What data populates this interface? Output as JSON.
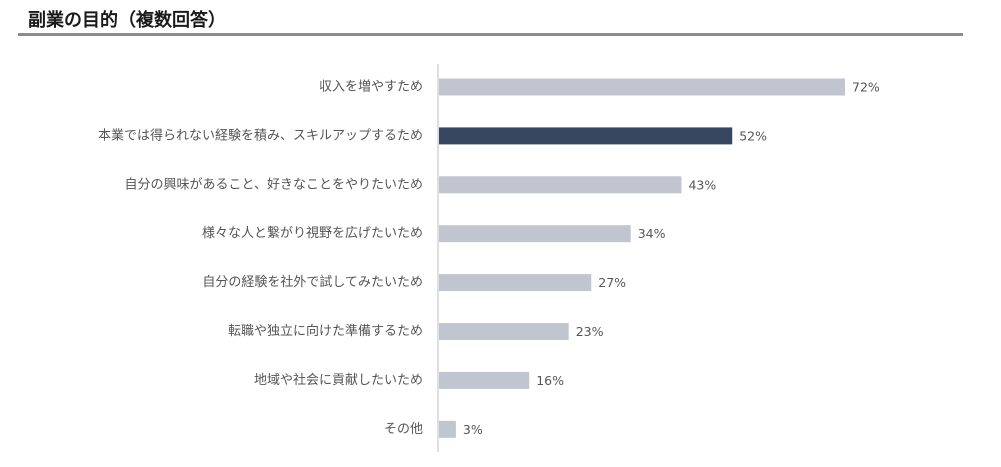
{
  "page": {
    "title": "副業の目的（複数回答）"
  },
  "colors": {
    "bar_default": "#c0c5d0",
    "bar_highlight": "#374761",
    "axis": "#bfbfbf",
    "title_rule": "#8c8c8c"
  },
  "chart_data": {
    "type": "bar",
    "orientation": "horizontal",
    "categories": [
      "収入を増やすため",
      "本業では得られない経験を積み、スキルアップするため",
      "自分の興味があること、好きなことをやりたいため",
      "様々な人と繋がり視野を広げたいため",
      "自分の経験を社外で試してみたいため",
      "転職や独立に向けた準備するため",
      "地域や社会に貢献したいため",
      "その他"
    ],
    "values": [
      72,
      52,
      43,
      34,
      27,
      23,
      16,
      3
    ],
    "value_labels": [
      "72%",
      "52%",
      "43%",
      "34%",
      "27%",
      "23%",
      "16%",
      "3%"
    ],
    "highlight_index": 1,
    "xlim": [
      0,
      100
    ],
    "unit": "%",
    "grid": false,
    "legend": "none"
  }
}
